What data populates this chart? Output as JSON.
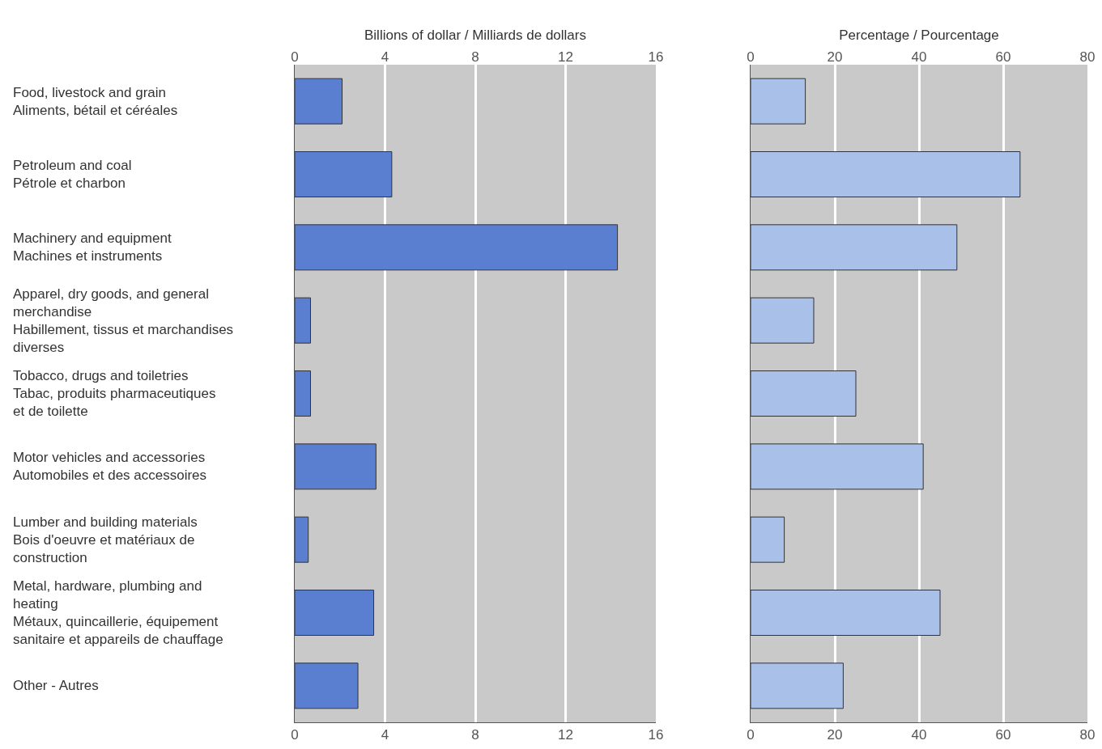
{
  "chart_data": [
    {
      "type": "bar",
      "orientation": "horizontal",
      "x2label": "Billions of dollar / Milliards de dollars",
      "categories": [
        "Food, livestock and grain\nAliments, bétail et céréales",
        "Petroleum and coal\nPétrole et charbon",
        "Machinery and equipment\nMachines et instruments",
        "Apparel, dry goods, and general\nmerchandise\nHabillement, tissus et marchandises\ndiverses",
        "Tobacco, drugs and toiletries\nTabac, produits pharmaceutiques\net de toilette",
        "Motor vehicles and accessories\nAutomobiles et des accessoires",
        "Lumber and building materials\nBois d'oeuvre et matériaux de\nconstruction",
        "Metal, hardware, plumbing and\nheating\nMétaux, quincaillerie, équipement\nsanitaire et appareils de chauffage",
        "Other - Autres"
      ],
      "values": [
        2.1,
        4.3,
        14.3,
        0.7,
        0.7,
        3.6,
        0.6,
        3.5,
        2.8
      ],
      "color": "#5b7fd0",
      "xlim": [
        0,
        16
      ],
      "xticks": [
        0,
        4,
        8,
        12,
        16
      ],
      "x2lim": [
        0,
        16
      ],
      "x2ticks": [
        0,
        4,
        8,
        12,
        16
      ],
      "grid": "x"
    },
    {
      "type": "bar",
      "orientation": "horizontal",
      "x2label": "Percentage / Pourcentage",
      "categories": [
        null,
        null,
        null,
        null,
        null,
        null,
        null,
        null,
        null
      ],
      "values": [
        13,
        64,
        49,
        15,
        25,
        41,
        8,
        45,
        22
      ],
      "color": "#a9c0e8",
      "xlim": [
        0,
        80
      ],
      "xticks": [
        0,
        20,
        40,
        60,
        80
      ],
      "x2lim": [
        0,
        80
      ],
      "x2ticks": [
        0,
        20,
        40,
        60,
        80
      ],
      "grid": "x",
      "tick_labels": "x"
    }
  ]
}
